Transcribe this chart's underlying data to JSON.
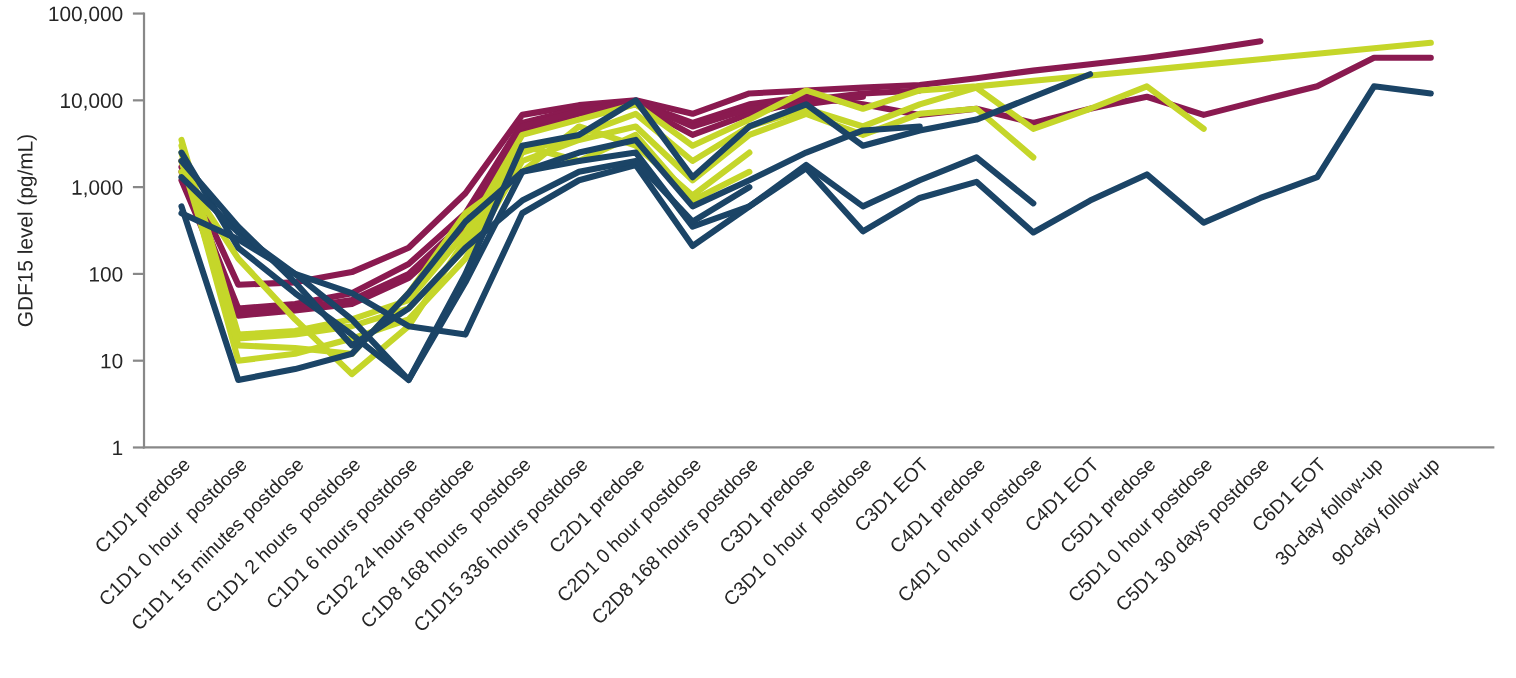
{
  "chart_data": {
    "type": "line",
    "ylabel": "GDF15 level (pg/mL)",
    "categories": [
      "C1D1 predose",
      "C1D1 0 hour  postdose",
      "C1D1 15 minutes postdose",
      "C1D1 2 hours  postdose",
      "C1D1 6 hours postdose",
      "C1D2 24 hours postdose",
      "C1D8 168 hours  postdose",
      "C1D15 336 hours postdose",
      "C2D1 predose",
      "C2D1 0 hour postdose",
      "C2D8 168 hours postdose",
      "C3D1 predose",
      "C3D1 0 hour  postdose",
      "C3D1 EOT",
      "C4D1 predose",
      "C4D1 0 hour postdose",
      "C4D1 EOT",
      "C5D1 predose",
      "C5D1 0 hour postdose",
      "C5D1 30 days postdose",
      "C6D1 EOT",
      "30-day follow-up",
      "90-day follow-up"
    ],
    "series": [
      {
        "color": "#8a1a50",
        "values": [
          2000,
          75,
          80,
          105,
          200,
          850,
          6800,
          8800,
          10000,
          7000,
          12000,
          13000,
          14000,
          15000,
          18000,
          22000,
          26000,
          31000,
          38000,
          48000,
          null,
          null,
          null
        ]
      },
      {
        "color": "#8a1a50",
        "values": [
          1700,
          40,
          45,
          60,
          130,
          500,
          5500,
          8000,
          9500,
          5500,
          9000,
          11000,
          9000,
          6800,
          8000,
          5500,
          8000,
          11000,
          6800,
          10000,
          14500,
          31000,
          31000
        ]
      },
      {
        "color": "#8a1a50",
        "values": [
          1500,
          33,
          38,
          45,
          90,
          350,
          4500,
          7000,
          9000,
          4000,
          7000,
          10000,
          12000,
          13000,
          null,
          null,
          null,
          null,
          null,
          null,
          null,
          null,
          null
        ]
      },
      {
        "color": "#8a1a50",
        "values": [
          1200,
          35,
          40,
          50,
          100,
          400,
          5000,
          7500,
          9500,
          5000,
          8000,
          9000,
          11000,
          null,
          null,
          null,
          null,
          null,
          null,
          null,
          null,
          null,
          null
        ]
      },
      {
        "color": "#c5d62a",
        "values": [
          3500,
          20,
          22,
          30,
          50,
          300,
          4000,
          6000,
          9000,
          3000,
          6000,
          13000,
          8000,
          13000,
          14500,
          16800,
          19300,
          22300,
          25800,
          29800,
          34400,
          39800,
          46000
        ]
      },
      {
        "color": "#c5d62a",
        "values": [
          3000,
          18,
          20,
          25,
          40,
          200,
          2500,
          4000,
          7000,
          2000,
          5000,
          8000,
          5000,
          9000,
          14000,
          4700,
          8000,
          14500,
          4700,
          null,
          null,
          null,
          null
        ]
      },
      {
        "color": "#c5d62a",
        "values": [
          2500,
          10,
          12,
          18,
          30,
          150,
          2000,
          3500,
          5000,
          1200,
          4000,
          7000,
          4000,
          7000,
          8000,
          2200,
          null,
          null,
          null,
          null,
          null,
          null,
          null
        ]
      },
      {
        "color": "#c5d62a",
        "values": [
          1500,
          150,
          30,
          7,
          25,
          250,
          3000,
          2000,
          4000,
          700,
          1500,
          null,
          null,
          null,
          null,
          null,
          null,
          null,
          null,
          null,
          null,
          null,
          null
        ]
      },
      {
        "color": "#c5d62a",
        "values": [
          2000,
          15,
          14,
          12,
          60,
          500,
          1500,
          5000,
          3000,
          800,
          2500,
          null,
          null,
          null,
          null,
          null,
          null,
          null,
          null,
          null,
          null,
          null,
          null
        ]
      },
      {
        "color": "#1b4466",
        "values": [
          500,
          250,
          100,
          60,
          25,
          20,
          500,
          1200,
          1800,
          210,
          600,
          1650,
          310,
          750,
          1150,
          300,
          700,
          1400,
          390,
          750,
          1300,
          14500,
          12000
        ]
      },
      {
        "color": "#1b4466",
        "values": [
          600,
          6,
          8,
          12,
          60,
          400,
          1500,
          2000,
          2500,
          350,
          600,
          1800,
          600,
          1200,
          2200,
          650,
          null,
          null,
          null,
          null,
          null,
          null,
          null
        ]
      },
      {
        "color": "#1b4466",
        "values": [
          2500,
          200,
          60,
          20,
          6,
          100,
          3000,
          4000,
          10000,
          1300,
          5000,
          9000,
          3000,
          4500,
          6000,
          11000,
          20000,
          null,
          null,
          null,
          null,
          null,
          null
        ]
      },
      {
        "color": "#1b4466",
        "values": [
          1300,
          300,
          100,
          30,
          6,
          80,
          1500,
          2500,
          3500,
          600,
          1200,
          2500,
          4500,
          5000,
          null,
          null,
          null,
          null,
          null,
          null,
          null,
          null,
          null
        ]
      },
      {
        "color": "#1b4466",
        "values": [
          2000,
          350,
          80,
          15,
          40,
          200,
          700,
          1500,
          2000,
          400,
          1000,
          null,
          null,
          null,
          null,
          null,
          null,
          null,
          null,
          null,
          null,
          null,
          null
        ]
      }
    ],
    "log": "y",
    "ylim": [
      1,
      100000
    ],
    "yticks": [
      1,
      10,
      100,
      {
        "value": 1000,
        "label": "1,000"
      },
      {
        "value": 10000,
        "label": "10,000"
      },
      {
        "value": 100000,
        "label": "100,000"
      }
    ],
    "grid": false,
    "marker": "none",
    "line_style": "solid"
  }
}
